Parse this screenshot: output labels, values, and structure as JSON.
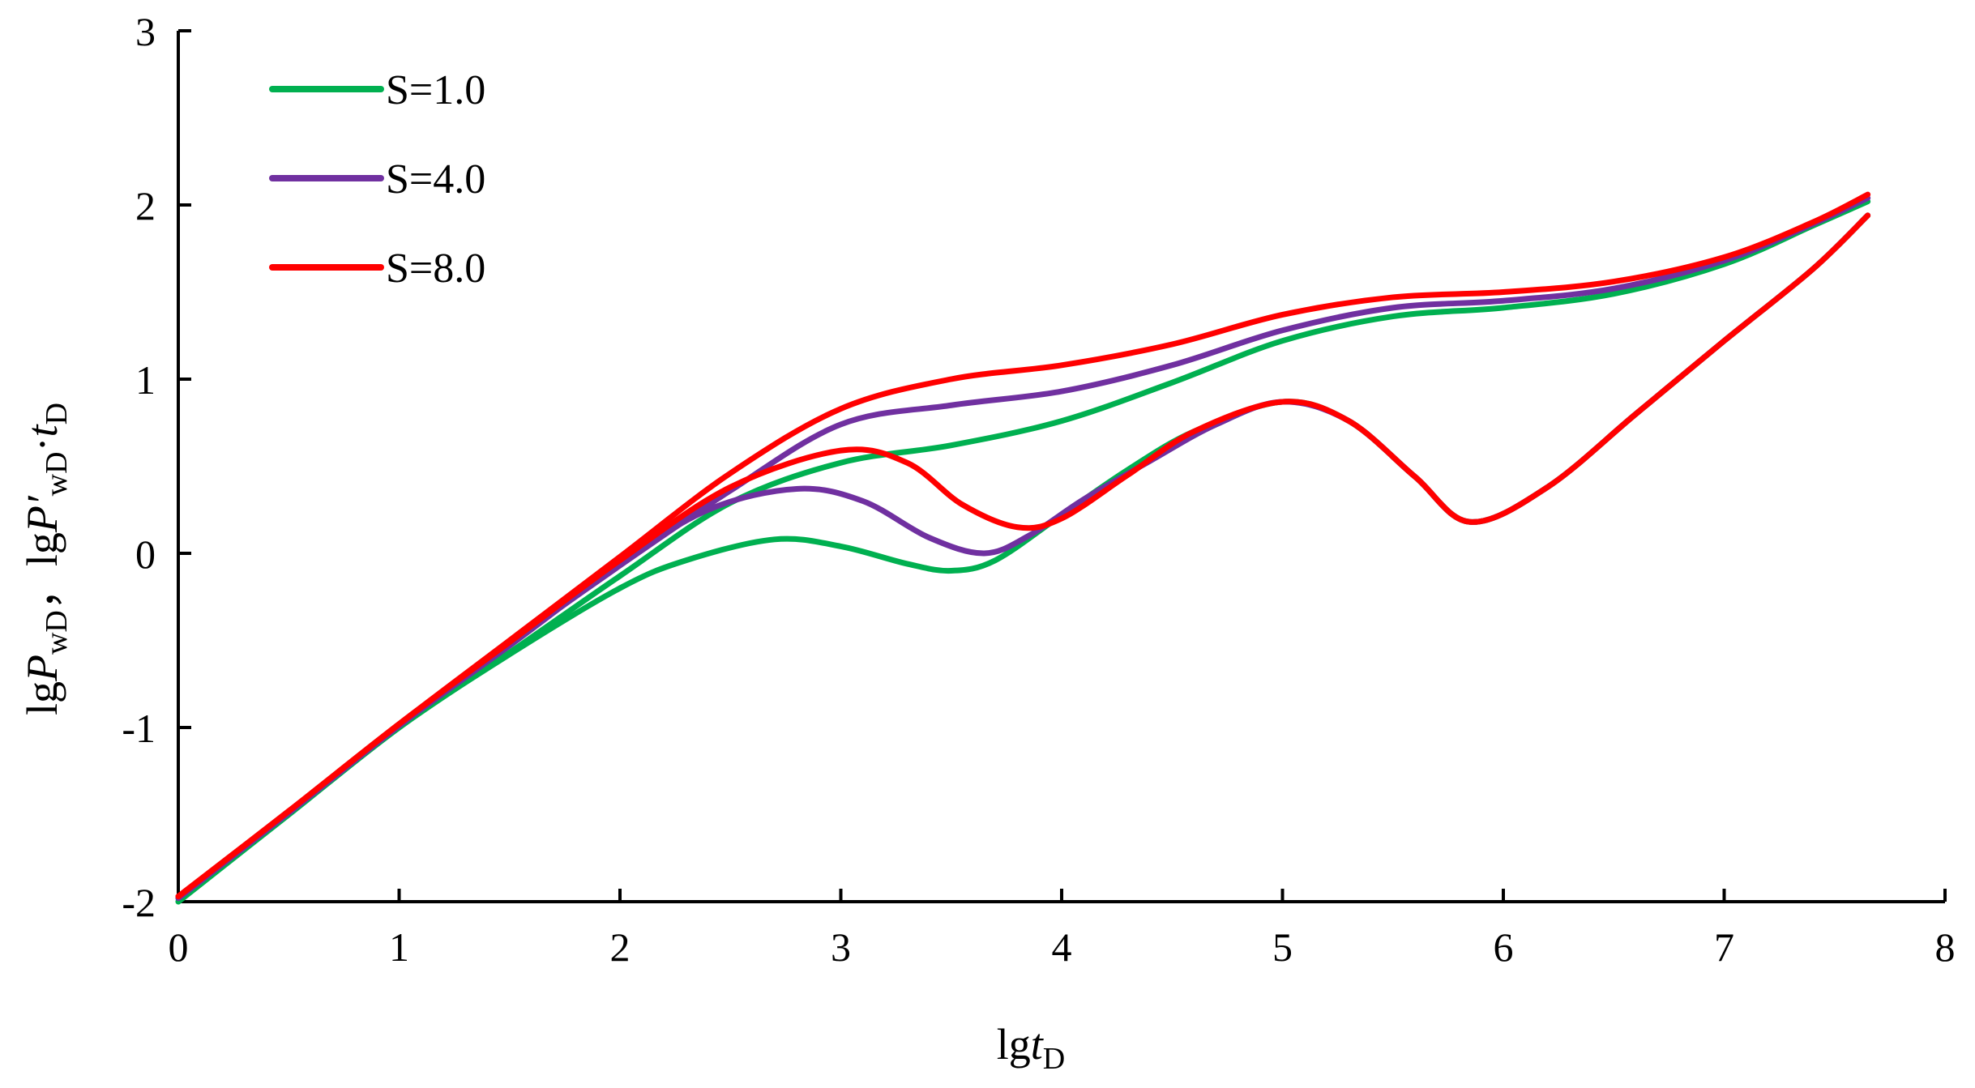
{
  "chart_data": {
    "type": "line",
    "title": "",
    "xlabel": {
      "prefix": "lg",
      "var": "t",
      "sub": "D"
    },
    "ylabel": {
      "p1_prefix": "lg",
      "p1_var": "P",
      "p1_sub": "wD",
      "sep": "，",
      "p2_prefix": "lg",
      "p2_var": "P′",
      "p2_sub": "wD",
      "p2_dot": "·",
      "p2_var2": "t",
      "p2_sub2": "D"
    },
    "xlim": [
      0,
      8
    ],
    "ylim": [
      -2,
      3
    ],
    "xticks": [
      0,
      1,
      2,
      3,
      4,
      5,
      6,
      7,
      8
    ],
    "yticks": [
      -2,
      -1,
      0,
      1,
      2,
      3
    ],
    "xtick_labels": [
      "0",
      "1",
      "2",
      "3",
      "4",
      "5",
      "6",
      "7",
      "8"
    ],
    "ytick_labels": [
      "-2",
      "-1",
      "0",
      "1",
      "2",
      "3"
    ],
    "grid": false,
    "legend_position": "top-left",
    "series": [
      {
        "name": "S=1.0",
        "color": "#00B050",
        "kind": "pressure",
        "x": [
          0,
          0.5,
          1,
          1.5,
          2,
          2.5,
          3,
          3.5,
          4,
          4.5,
          5,
          5.5,
          6,
          6.5,
          7,
          7.4,
          7.65
        ],
        "y": [
          -2.0,
          -1.5,
          -1.0,
          -0.57,
          -0.13,
          0.29,
          0.52,
          0.62,
          0.76,
          0.98,
          1.22,
          1.36,
          1.41,
          1.49,
          1.66,
          1.88,
          2.02
        ]
      },
      {
        "name": "S=1.0",
        "color": "#00B050",
        "kind": "derivative",
        "x": [
          0,
          0.5,
          1,
          1.5,
          2,
          2.3,
          2.7,
          3,
          3.3,
          3.5,
          3.7,
          4,
          4.3,
          4.6,
          5,
          5.3,
          5.6,
          5.85,
          6.2,
          6.6,
          7,
          7.4,
          7.65
        ],
        "y": [
          -2.0,
          -1.5,
          -1.0,
          -0.58,
          -0.2,
          -0.04,
          0.08,
          0.04,
          -0.06,
          -0.1,
          -0.04,
          0.22,
          0.48,
          0.7,
          0.87,
          0.76,
          0.44,
          0.18,
          0.38,
          0.8,
          1.22,
          1.63,
          1.94
        ]
      },
      {
        "name": "S=4.0",
        "color": "#7030A0",
        "kind": "pressure",
        "x": [
          0,
          0.5,
          1,
          1.5,
          2,
          2.5,
          3,
          3.5,
          4,
          4.5,
          5,
          5.5,
          6,
          6.5,
          7,
          7.4,
          7.65
        ],
        "y": [
          -1.98,
          -1.49,
          -0.99,
          -0.52,
          -0.07,
          0.36,
          0.74,
          0.85,
          0.93,
          1.08,
          1.28,
          1.41,
          1.45,
          1.52,
          1.68,
          1.89,
          2.04
        ]
      },
      {
        "name": "S=4.0",
        "color": "#7030A0",
        "kind": "derivative",
        "x": [
          0,
          0.5,
          1,
          1.5,
          2,
          2.4,
          2.8,
          3.1,
          3.4,
          3.65,
          3.85,
          4.1,
          4.4,
          4.7,
          5,
          5.3,
          5.6,
          5.85,
          6.2,
          6.6,
          7,
          7.4,
          7.65
        ],
        "y": [
          -1.98,
          -1.49,
          -0.99,
          -0.53,
          -0.06,
          0.25,
          0.37,
          0.3,
          0.09,
          0.0,
          0.1,
          0.31,
          0.53,
          0.74,
          0.87,
          0.76,
          0.44,
          0.18,
          0.38,
          0.8,
          1.22,
          1.63,
          1.94
        ]
      },
      {
        "name": "S=8.0",
        "color": "#FF0000",
        "kind": "pressure",
        "x": [
          0,
          0.5,
          1,
          1.5,
          2,
          2.5,
          3,
          3.5,
          4,
          4.5,
          5,
          5.5,
          6,
          6.5,
          7,
          7.4,
          7.65
        ],
        "y": [
          -1.97,
          -1.48,
          -0.98,
          -0.5,
          -0.02,
          0.46,
          0.83,
          1.0,
          1.08,
          1.2,
          1.37,
          1.47,
          1.5,
          1.56,
          1.7,
          1.9,
          2.06
        ]
      },
      {
        "name": "S=8.0",
        "color": "#FF0000",
        "kind": "derivative",
        "x": [
          0,
          0.5,
          1,
          1.5,
          2,
          2.5,
          3,
          3.3,
          3.55,
          3.8,
          4.0,
          4.3,
          4.6,
          5,
          5.3,
          5.6,
          5.85,
          6.2,
          6.6,
          7,
          7.4,
          7.65
        ],
        "y": [
          -1.97,
          -1.48,
          -0.98,
          -0.51,
          -0.04,
          0.38,
          0.59,
          0.52,
          0.28,
          0.15,
          0.2,
          0.45,
          0.7,
          0.87,
          0.76,
          0.44,
          0.18,
          0.38,
          0.8,
          1.22,
          1.63,
          1.94
        ]
      }
    ],
    "legend": [
      {
        "label": "S=1.0",
        "color": "#00B050"
      },
      {
        "label": "S=4.0",
        "color": "#7030A0"
      },
      {
        "label": "S=8.0",
        "color": "#FF0000"
      }
    ]
  }
}
